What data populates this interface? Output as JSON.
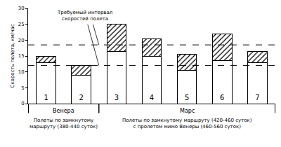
{
  "chart_data": {
    "type": "bar",
    "stacked": true,
    "y_label": "Скорость полета, км/час",
    "categories": [
      "1",
      "2",
      "3",
      "4",
      "5",
      "6",
      "7"
    ],
    "series": [
      {
        "color": "#ffffff",
        "values": [
          13,
          9,
          16.5,
          15,
          10.5,
          13.5,
          13
        ]
      },
      {
        "color": "#ffffff",
        "marker": "hatch",
        "values": [
          2,
          3,
          8.5,
          5.5,
          5,
          8.5,
          3.5
        ]
      }
    ],
    "ylim": [
      0,
      30
    ],
    "yticks": [
      0,
      5,
      10,
      15,
      20,
      25,
      30
    ],
    "grid": false,
    "tick_labels": "y",
    "reference_lines": {
      "values": [
        12,
        18.5
      ],
      "line_style": "dashed",
      "label": [
        "Требуемый интервал",
        "скоростей полета"
      ]
    },
    "groups": [
      {
        "title": "Венера",
        "text": [
          "Полеты по замкнутому",
          "маршруту (380-440 суток)"
        ],
        "categories": [
          "1",
          "2"
        ]
      },
      {
        "title": "Марс",
        "text": [
          "Полеты по замкнутому маршруту (420-460 суток)",
          "с пролетом мимо Венеры (460-560 суток)"
        ],
        "categories": [
          "3",
          "4",
          "5",
          "6",
          "7"
        ]
      }
    ]
  }
}
